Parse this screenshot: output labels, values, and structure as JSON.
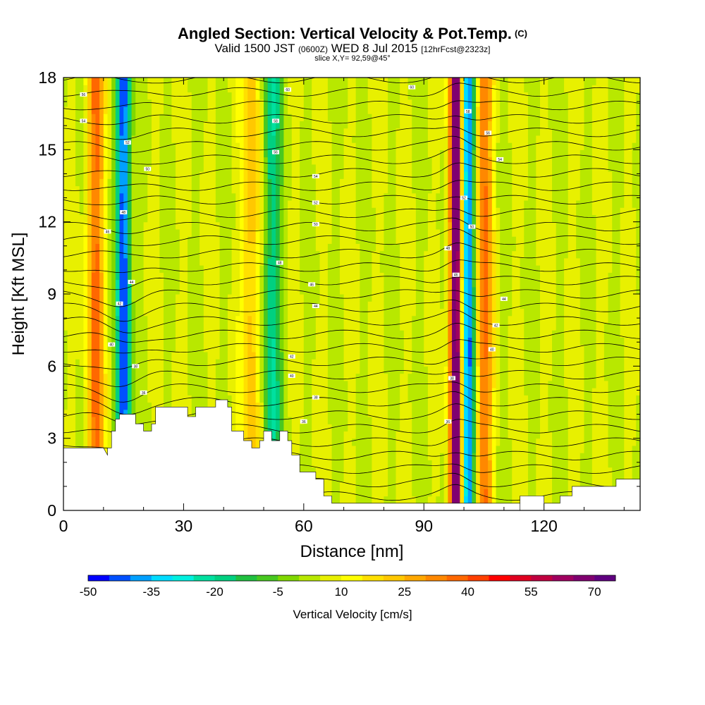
{
  "header": {
    "title": "Angled Section: Vertical Velocity & Pot.Temp.",
    "title_unit": "(C)",
    "subtitle_pre": "Valid 1500 JST",
    "subtitle_utc": "(0600Z)",
    "subtitle_date": "WED 8 Jul 2015",
    "subtitle_run": "[12hrFcst@2323z]",
    "slice": "slice X,Y= 92,59@45°"
  },
  "chart_data": {
    "type": "heatmap",
    "xlabel": "Distance [nm]",
    "ylabel": "Height [Kft MSL]",
    "xlim": [
      0,
      144
    ],
    "ylim": [
      0,
      18
    ],
    "x_ticks": [
      0,
      30,
      60,
      90,
      120
    ],
    "y_ticks": [
      0,
      3,
      6,
      9,
      12,
      15,
      18
    ],
    "contour_field": "Pot.Temp. (C)",
    "contour_label_values": [
      "36",
      "38",
      "40",
      "42",
      "44",
      "46",
      "48",
      "50",
      "52",
      "54",
      "56",
      "58",
      "60"
    ],
    "colorbar": {
      "label": "Vertical Velocity [cm/s]",
      "tick_labels": [
        "-50",
        "-35",
        "-20",
        "-5",
        "10",
        "25",
        "40",
        "55",
        "70"
      ],
      "colors": [
        "#0000ff",
        "#0050ff",
        "#00a0ff",
        "#00dcff",
        "#00f0e0",
        "#00e0a0",
        "#00d080",
        "#20c040",
        "#48c820",
        "#80d800",
        "#b8e800",
        "#e8f000",
        "#ffff00",
        "#ffe000",
        "#ffc800",
        "#ffa800",
        "#ff8800",
        "#ff6800",
        "#ff4000",
        "#ff0000",
        "#e00020",
        "#c00040",
        "#a00060",
        "#800070",
        "#600080"
      ]
    },
    "velocity_features": [
      {
        "x": 8,
        "value": 35,
        "note": "updraft"
      },
      {
        "x": 15,
        "value": -48,
        "note": "downdraft"
      },
      {
        "x": 47,
        "value": 25,
        "note": "updraft"
      },
      {
        "x": 52,
        "value": -20,
        "note": "downdraft"
      },
      {
        "x": 98,
        "value": 75,
        "note": "strong updraft"
      },
      {
        "x": 101,
        "value": -45,
        "note": "downdraft"
      },
      {
        "x": 105,
        "value": 35,
        "note": "updraft"
      }
    ]
  }
}
